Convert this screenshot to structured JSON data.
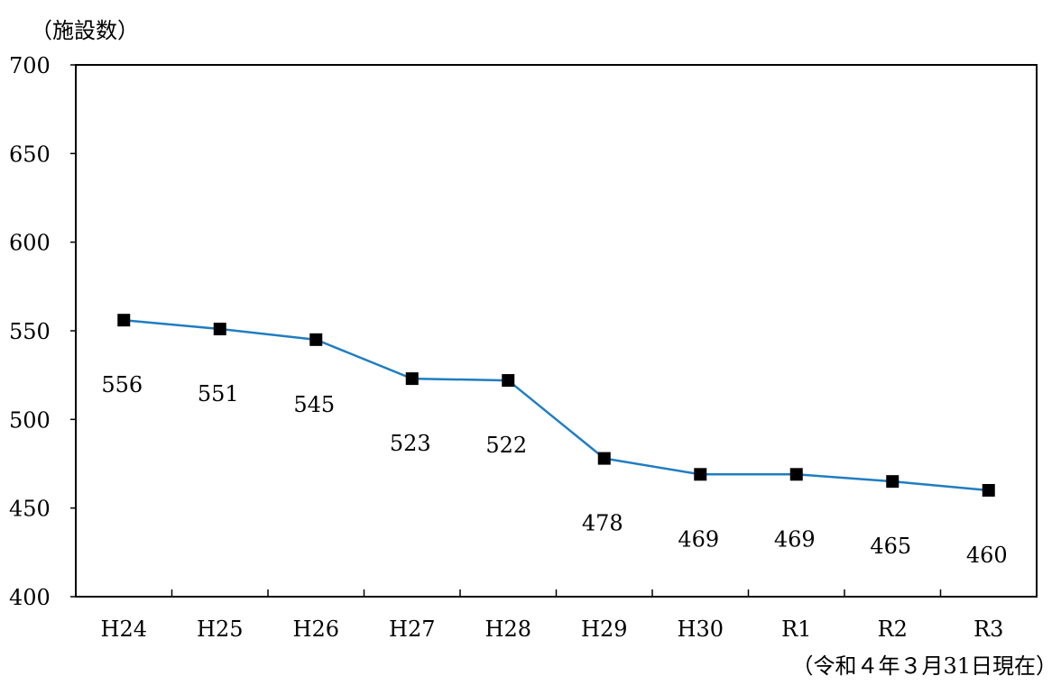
{
  "chart_data": {
    "type": "line",
    "ylabel": "（施設数）",
    "xlabel": "",
    "note": "（令和４年３月31日現在）",
    "categories": [
      "H24",
      "H25",
      "H26",
      "H27",
      "H28",
      "H29",
      "H30",
      "R1",
      "R2",
      "R3"
    ],
    "series": [
      {
        "values": [
          556,
          551,
          545,
          523,
          522,
          478,
          469,
          469,
          465,
          460
        ]
      }
    ],
    "data_labels": [
      "556",
      "551",
      "545",
      "523",
      "522",
      "478",
      "469",
      "469",
      "465",
      "460"
    ],
    "ylim": [
      400,
      700
    ],
    "yticks": [
      400,
      450,
      500,
      550,
      600,
      650,
      700
    ],
    "ytick_labels": [
      "400",
      "450",
      "500",
      "550",
      "600",
      "650",
      "700"
    ],
    "grid": false,
    "legend": "none",
    "line_color": "#1f7dc1",
    "marker": "square",
    "marker_color": "#000000"
  }
}
